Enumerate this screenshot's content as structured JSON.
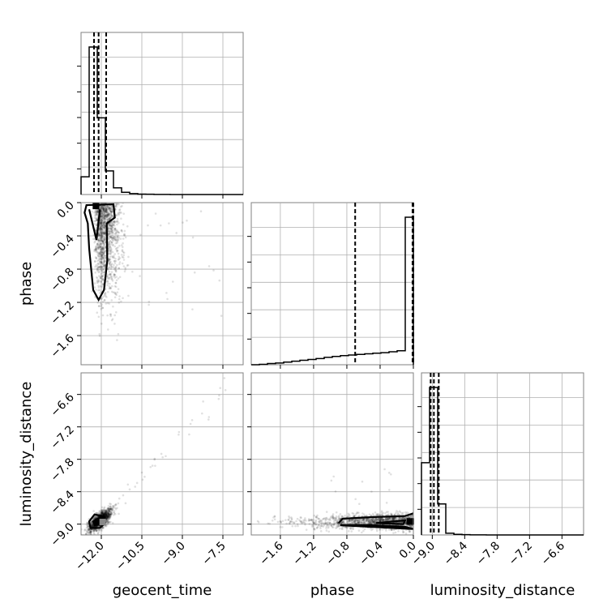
{
  "chart_data": {
    "type": "corner",
    "parameters": [
      "geocent_time",
      "phase",
      "luminosity_distance"
    ],
    "axes": {
      "geocent_time": {
        "label": "geocent_time",
        "range": [
          -12.75,
          -6.75
        ],
        "ticks": [
          -12.0,
          -10.5,
          -9.0,
          -7.5
        ],
        "tick_labels": [
          "−12.0",
          "−10.5",
          "−9.0",
          "−7.5"
        ]
      },
      "phase": {
        "label": "phase",
        "range": [
          -1.95,
          0.0
        ],
        "ticks": [
          -1.6,
          -1.2,
          -0.8,
          -0.4,
          0.0
        ],
        "tick_labels": [
          "−1.6",
          "−1.2",
          "−0.8",
          "−0.4",
          "0.0"
        ]
      },
      "luminosity_distance": {
        "label": "luminosity_distance",
        "range": [
          -9.2,
          -6.2
        ],
        "ticks": [
          -9.0,
          -8.4,
          -7.8,
          -7.2,
          -6.6
        ],
        "tick_labels": [
          "−9.0",
          "−8.4",
          "−7.8",
          "−7.2",
          "−6.6"
        ]
      }
    },
    "histograms": {
      "geocent_time": {
        "bin_edges": [
          -12.75,
          -12.45,
          -12.15,
          -11.85,
          -11.55,
          -11.25,
          -10.95,
          -10.65,
          -10.35,
          -10.05,
          -9.75,
          -9.45,
          -9.15,
          -8.85,
          -8.55,
          -8.25,
          -7.95,
          -7.65,
          -7.35,
          -7.05,
          -6.75
        ],
        "counts": [
          0.12,
          1.0,
          0.52,
          0.16,
          0.045,
          0.015,
          0.006,
          0.003,
          0.002,
          0.001,
          0.0005,
          0.0003,
          0.0002,
          0.0001,
          0,
          0,
          0,
          0,
          0,
          0
        ],
        "quantiles": [
          -12.27,
          -12.1,
          -11.82
        ]
      },
      "phase": {
        "bin_edges": [
          -1.95,
          -1.8525,
          -1.755,
          -1.6575,
          -1.56,
          -1.4625,
          -1.365,
          -1.2675,
          -1.17,
          -1.0725,
          -0.975,
          -0.8775,
          -0.78,
          -0.6825,
          -0.585,
          -0.4875,
          -0.39,
          -0.2925,
          -0.195,
          -0.0975,
          0.0
        ],
        "counts": [
          0.0,
          0.003,
          0.008,
          0.012,
          0.018,
          0.024,
          0.03,
          0.036,
          0.042,
          0.05,
          0.056,
          0.062,
          0.066,
          0.07,
          0.074,
          0.078,
          0.082,
          0.088,
          0.095,
          1.0
        ],
        "quantiles": [
          -0.7,
          -0.01,
          0.0
        ]
      },
      "luminosity_distance": {
        "bin_edges": [
          -9.2,
          -9.05,
          -8.9,
          -8.75,
          -8.6,
          -8.45,
          -8.3,
          -8.15,
          -8.0,
          -7.85,
          -7.7,
          -7.55,
          -7.4,
          -7.25,
          -7.1,
          -6.95,
          -6.8,
          -6.65,
          -6.5,
          -6.35,
          -6.2
        ],
        "counts": [
          0.49,
          1.0,
          0.21,
          0.012,
          0.004,
          0.002,
          0.001,
          0.0005,
          0.0003,
          0.0002,
          0.0001,
          0,
          0,
          0,
          0,
          0,
          0,
          0,
          0,
          0
        ],
        "quantiles": [
          -9.03,
          -8.97,
          -8.88
        ]
      }
    },
    "scatter_centers": {
      "geocent_time_vs_phase": {
        "x": -12.05,
        "y": -0.45
      },
      "geocent_time_vs_luminosity_distance": {
        "x": -12.0,
        "y": -8.93
      },
      "phase_vs_luminosity_distance": {
        "x": -0.35,
        "y": -8.95
      }
    },
    "grid": true
  }
}
